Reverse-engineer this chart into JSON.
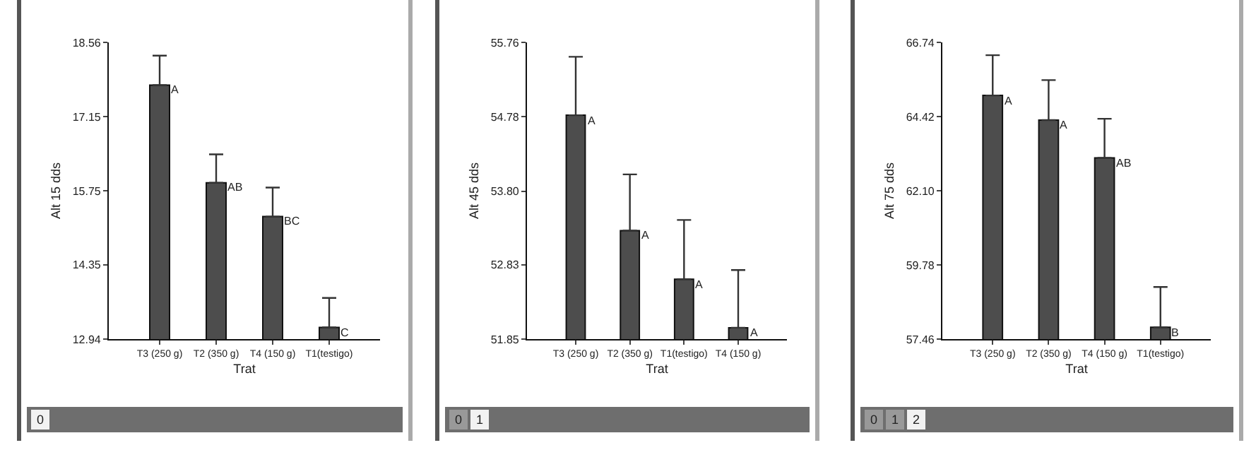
{
  "chart_data": [
    {
      "type": "bar",
      "xlabel": "Trat",
      "ylabel": "Alt 15 dds",
      "categories": [
        "T3 (250 g)",
        "T2 (350 g)",
        "T4 (150 g)",
        "T1(testigo)"
      ],
      "color": "#4d4d4d",
      "values": [
        17.75,
        15.9,
        15.26,
        13.16
      ],
      "errors": [
        [
          17.75,
          18.31
        ],
        [
          15.9,
          16.44
        ],
        [
          15.26,
          15.81
        ],
        [
          13.16,
          13.72
        ]
      ],
      "ylim": [
        12.94,
        18.56
      ],
      "yticks": [
        12.94,
        14.35,
        15.75,
        17.15,
        18.56
      ],
      "grid": false,
      "annotations": [
        {
          "text": "A",
          "x": "T3 (250 g)",
          "y": 17.75
        },
        {
          "text": "AB",
          "x": "T2 (350 g)",
          "y": 15.9
        },
        {
          "text": "BC",
          "x": "T4 (150 g)",
          "y": 15.26
        },
        {
          "text": "C",
          "x": "T1(testigo)",
          "y": 13.16
        },
        "0"
      ]
    },
    {
      "type": "bar",
      "xlabel": "Trat",
      "ylabel": "Alt 45 dds",
      "categories": [
        "T3 (250 g)",
        "T2 (350 g)",
        "T1(testigo)",
        "T4 (150 g)"
      ],
      "color": "#4d4d4d",
      "values": [
        54.8,
        53.28,
        52.64,
        52.0
      ],
      "errors": [
        [
          54.8,
          55.57
        ],
        [
          53.28,
          54.02
        ],
        [
          52.64,
          53.42
        ],
        [
          52.0,
          52.76
        ]
      ],
      "ylim": [
        51.85,
        55.76
      ],
      "yticks": [
        51.85,
        52.83,
        {
          "value": 53.8,
          "label": "53.80"
        },
        54.78,
        55.76
      ],
      "grid": false,
      "annotations": [
        {
          "text": "A",
          "x": "T3 (250 g)",
          "y": 54.8
        },
        {
          "text": "A",
          "x": "T2 (350 g)",
          "y": 53.28
        },
        {
          "text": "A",
          "x": "T1(testigo)",
          "y": 52.64
        },
        {
          "text": "A",
          "x": "T4 (150 g)",
          "y": 52.0
        },
        "0",
        "1"
      ]
    },
    {
      "type": "bar",
      "xlabel": "Trat",
      "ylabel": "Alt 75 dds",
      "categories": [
        "T3 (250 g)",
        "T2 (350 g)",
        "T4 (150 g)",
        "T1(testigo)"
      ],
      "color": "#4d4d4d",
      "values": [
        65.08,
        64.31,
        63.13,
        57.83
      ],
      "errors": [
        [
          65.08,
          66.34
        ],
        [
          64.31,
          65.56
        ],
        [
          63.13,
          64.35
        ],
        [
          57.83,
          59.09
        ]
      ],
      "ylim": [
        57.46,
        66.74
      ],
      "yticks": [
        57.46,
        {
          "value": 59.78,
          "label": "59.78"
        },
        {
          "value": 62.1,
          "label": "62.10"
        },
        64.42,
        66.74
      ],
      "grid": false,
      "annotations": [
        {
          "text": "A",
          "x": "T3 (250 g)",
          "y": 65.08
        },
        {
          "text": "A",
          "x": "T2 (350 g)",
          "y": 64.31
        },
        {
          "text": "AB",
          "x": "T4 (150 g)",
          "y": 63.13
        },
        {
          "text": "B",
          "x": "T1(testigo)",
          "y": 57.83
        },
        "0",
        "1",
        "2"
      ]
    }
  ]
}
